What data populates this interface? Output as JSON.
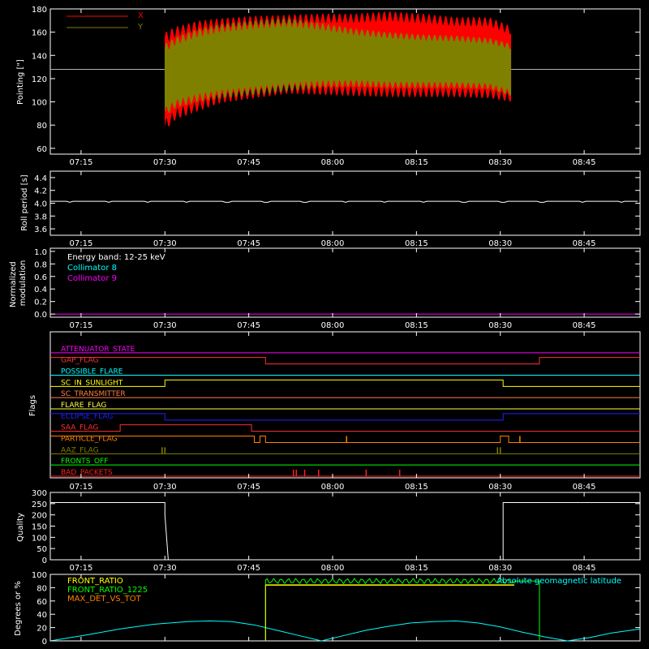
{
  "time_axis": {
    "ticks": [
      "07:15",
      "07:30",
      "07:45",
      "08:00",
      "08:15",
      "08:30",
      "08:45"
    ],
    "tick_minutes": [
      435,
      450,
      465,
      480,
      495,
      510,
      525
    ],
    "range_minutes": [
      429.5,
      535
    ]
  },
  "chart_data": [
    {
      "type": "area",
      "id": "pointing",
      "ylabel": "Pointing [\"]",
      "ylim": [
        55,
        180
      ],
      "yticks": [
        "60",
        "80",
        "100",
        "120",
        "140",
        "160",
        "180"
      ],
      "ytick_values": [
        60,
        80,
        100,
        120,
        140,
        160,
        180
      ],
      "legend_position": "top-left",
      "reference_line": 128,
      "series": [
        {
          "name": "X",
          "color": "#ff0000",
          "t_start": 450,
          "t_end": 512,
          "upper": [
            [
              450,
              160
            ],
            [
              452,
              165
            ],
            [
              456,
              170
            ],
            [
              460,
              172
            ],
            [
              466,
              174
            ],
            [
              472,
              175
            ],
            [
              478,
              176
            ],
            [
              484,
              176
            ],
            [
              490,
              178
            ],
            [
              496,
              176
            ],
            [
              502,
              173
            ],
            [
              508,
              173
            ],
            [
              512,
              165
            ]
          ],
          "lower": [
            [
              450,
              75
            ],
            [
              452,
              85
            ],
            [
              456,
              92
            ],
            [
              460,
              99
            ],
            [
              466,
              103
            ],
            [
              472,
              107
            ],
            [
              478,
              106
            ],
            [
              484,
              105
            ],
            [
              490,
              104
            ],
            [
              496,
              104
            ],
            [
              502,
              104
            ],
            [
              508,
              103
            ],
            [
              512,
              100
            ]
          ]
        },
        {
          "name": "Y",
          "color": "#808000",
          "t_start": 450,
          "t_end": 512,
          "upper": [
            [
              450,
              150
            ],
            [
              452,
              156
            ],
            [
              456,
              163
            ],
            [
              460,
              167
            ],
            [
              466,
              170
            ],
            [
              472,
              172
            ],
            [
              478,
              168
            ],
            [
              484,
              163
            ],
            [
              490,
              160
            ],
            [
              496,
              158
            ],
            [
              502,
              157
            ],
            [
              508,
              155
            ],
            [
              512,
              150
            ]
          ],
          "lower": [
            [
              450,
              88
            ],
            [
              452,
              95
            ],
            [
              456,
              100
            ],
            [
              460,
              103
            ],
            [
              466,
              106
            ],
            [
              472,
              109
            ],
            [
              478,
              112
            ],
            [
              484,
              113
            ],
            [
              490,
              112
            ],
            [
              496,
              112
            ],
            [
              502,
              112
            ],
            [
              508,
              111
            ],
            [
              512,
              105
            ]
          ]
        }
      ]
    },
    {
      "type": "line",
      "id": "roll",
      "ylabel": "Roll period [s]",
      "ylim": [
        3.5,
        4.5
      ],
      "yticks": [
        "3.6",
        "3.8",
        "4.0",
        "4.2",
        "4.4"
      ],
      "ytick_values": [
        3.6,
        3.8,
        4.0,
        4.2,
        4.4
      ],
      "series": [
        {
          "color": "#ffffff",
          "y": 4.03
        }
      ]
    },
    {
      "type": "line",
      "id": "modulation",
      "ylabel": "Normalized modulation",
      "ylim": [
        -0.05,
        1.05
      ],
      "yticks": [
        "0.0",
        "0.2",
        "0.4",
        "0.6",
        "0.8",
        "1.0"
      ],
      "ytick_values": [
        0,
        0.2,
        0.4,
        0.6,
        0.8,
        1.0
      ],
      "annotations": [
        {
          "text": "Energy band: 12-25 keV",
          "color": "#ffffff"
        },
        {
          "text": "Collimator 8",
          "color": "#00ffff"
        },
        {
          "text": "Collimator 9",
          "color": "#ff00ff"
        }
      ],
      "series": [
        {
          "name": "Collimator 9",
          "color": "#ff00ff",
          "y": 0.0
        }
      ]
    },
    {
      "type": "line",
      "id": "flags",
      "ylabel": "Flags",
      "rows": [
        {
          "name": "ATTENUATOR_STATE",
          "color": "#ff00ff",
          "steps": [
            [
              429.5,
              0
            ],
            [
              535,
              0
            ]
          ]
        },
        {
          "name": "GAP_FLAG",
          "color": "#ff3030",
          "steps": [
            [
              429.5,
              1
            ],
            [
              468,
              0
            ],
            [
              512.5,
              0
            ],
            [
              517,
              1
            ]
          ]
        },
        {
          "name": "POSSIBLE_FLARE",
          "color": "#00ffff",
          "steps": [
            [
              429.5,
              0
            ],
            [
              535,
              0
            ]
          ]
        },
        {
          "name": "SC_IN_SUNLIGHT",
          "color": "#ffff00",
          "steps": [
            [
              429.5,
              0
            ],
            [
              450,
              1
            ],
            [
              510.5,
              0
            ]
          ]
        },
        {
          "name": "SC_TRANSMITTER",
          "color": "#ff8040",
          "steps": [
            [
              429.5,
              0
            ],
            [
              535,
              0
            ]
          ]
        },
        {
          "name": "FLARE_FLAG",
          "color": "#ffff40",
          "steps": [
            [
              429.5,
              0
            ],
            [
              535,
              0
            ]
          ]
        },
        {
          "name": "ECLIPSE_FLAG",
          "color": "#2020ff",
          "steps": [
            [
              429.5,
              1
            ],
            [
              450,
              0
            ],
            [
              510.5,
              1
            ]
          ]
        },
        {
          "name": "SAA_FLAG",
          "color": "#ff3030",
          "steps": [
            [
              429.5,
              0
            ],
            [
              442,
              1
            ],
            [
              465.5,
              0
            ]
          ]
        },
        {
          "name": "PARTICLE_FLAG",
          "color": "#ff8000",
          "steps": [
            [
              429.5,
              1
            ],
            [
              466,
              0
            ],
            [
              467,
              1
            ],
            [
              468,
              0
            ],
            [
              510,
              1
            ],
            [
              511.5,
              0
            ]
          ],
          "spikes": [
            482.5,
            513.5
          ]
        },
        {
          "name": "AAZ_FLAG",
          "color": "#808000",
          "steps": [
            [
              429.5,
              0
            ]
          ],
          "spikes": [
            449.5,
            450,
            509.5,
            510
          ]
        },
        {
          "name": "FRONTS_OFF",
          "color": "#00ff00",
          "steps": [
            [
              429.5,
              0
            ],
            [
              535,
              0
            ]
          ]
        },
        {
          "name": "BAD_PACKETS",
          "color": "#ff2020",
          "steps": [
            [
              429.5,
              0
            ],
            [
              535,
              0
            ]
          ],
          "spikes": [
            473,
            473.5,
            475,
            477.5,
            486,
            492
          ]
        }
      ]
    },
    {
      "type": "line",
      "id": "quality",
      "ylabel": "Quality",
      "ylim": [
        0,
        300
      ],
      "yticks": [
        "0",
        "50",
        "100",
        "150",
        "200",
        "250",
        "300"
      ],
      "ytick_values": [
        0,
        50,
        100,
        150,
        200,
        250,
        300
      ],
      "series": [
        {
          "color": "#ffffff",
          "points": [
            [
              429.5,
              255
            ],
            [
              450,
              255
            ],
            [
              450,
              200
            ],
            [
              450.6,
              0
            ],
            [
              510.5,
              0
            ],
            [
              510.5,
              255
            ],
            [
              535,
              255
            ]
          ]
        }
      ]
    },
    {
      "type": "line",
      "id": "ratios",
      "ylabel": "Degrees or %",
      "ylim": [
        0,
        100
      ],
      "yticks": [
        "0",
        "20",
        "40",
        "60",
        "80",
        "100"
      ],
      "ytick_values": [
        0,
        20,
        40,
        60,
        80,
        100
      ],
      "legend": [
        {
          "name": "FRONT_RATIO",
          "color": "#ffff00"
        },
        {
          "name": "FRONT_RATIO_1225",
          "color": "#00ff00"
        },
        {
          "name": "MAX_DET_VS_TOT",
          "color": "#ff8000"
        }
      ],
      "right_label": {
        "text": "Absolute geomagnetic latitude",
        "color": "#00ffff"
      },
      "series": [
        {
          "name": "FRONT_RATIO",
          "color": "#ffff00",
          "t_start": 468,
          "t_end": 512.5,
          "level": 84
        },
        {
          "name": "FRONT_RATIO_1225",
          "color": "#00ff00",
          "t_start": 468,
          "t_end": 517,
          "level": 90,
          "noise": 3
        },
        {
          "name": "Absolute geomagnetic latitude",
          "color": "#00ffff",
          "points": [
            [
              429.5,
              0
            ],
            [
              436,
              9
            ],
            [
              442,
              18
            ],
            [
              448,
              25
            ],
            [
              454,
              29
            ],
            [
              458,
              30
            ],
            [
              462,
              29
            ],
            [
              466,
              24
            ],
            [
              470,
              16
            ],
            [
              474,
              8
            ],
            [
              478,
              0
            ],
            [
              482,
              8
            ],
            [
              486,
              16
            ],
            [
              490,
              22
            ],
            [
              494,
              27
            ],
            [
              498,
              29
            ],
            [
              502,
              30
            ],
            [
              506,
              27
            ],
            [
              510,
              21
            ],
            [
              514,
              13
            ],
            [
              518,
              6
            ],
            [
              522,
              0
            ],
            [
              526,
              5
            ],
            [
              530,
              12
            ],
            [
              535,
              18
            ]
          ]
        }
      ]
    }
  ]
}
